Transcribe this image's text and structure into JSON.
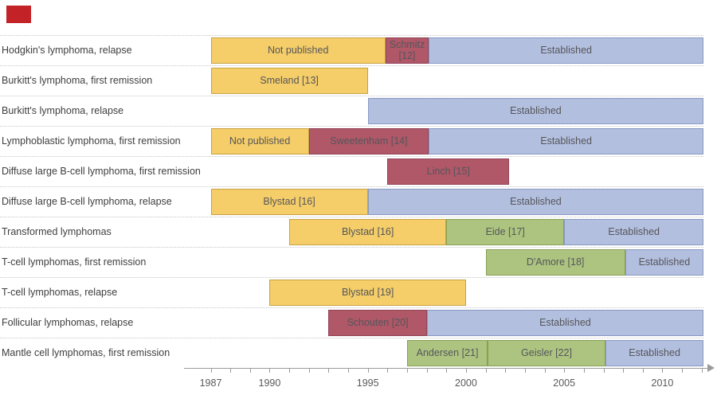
{
  "decorations": {
    "corner_mark_color": "#c32227"
  },
  "chart_data": {
    "type": "bar",
    "subtype": "horizontal-timeline-gantt",
    "title": "",
    "x_axis": {
      "origin_year": 1987,
      "end_year": 2012.1,
      "ticks": [
        1987,
        1990,
        1995,
        2000,
        2005,
        2010
      ],
      "minor_from": 1987,
      "minor_to": 2012,
      "minor_interval": 1
    },
    "colors": {
      "yellow": {
        "fill": "#F5CE69",
        "border": "#C8A145"
      },
      "red": {
        "fill": "#B05768",
        "border": "#934459"
      },
      "blue": {
        "fill": "#B3BFDF",
        "border": "#8999C5"
      },
      "green": {
        "fill": "#ADC480",
        "border": "#87A054"
      }
    },
    "rows": [
      {
        "label": "Hodgkin's lymphoma, relapse",
        "segments": [
          {
            "label": "Not published",
            "color": "yellow",
            "start": 1987,
            "end": 1995.9
          },
          {
            "label": "Schmitz [12]",
            "color": "red",
            "start": 1995.9,
            "end": 1998.1
          },
          {
            "label": "Established",
            "color": "blue",
            "start": 1998.1,
            "end": 2012.1
          }
        ]
      },
      {
        "label": "Burkitt's lymphoma, first remission",
        "segments": [
          {
            "label": "Smeland [13]",
            "color": "yellow",
            "start": 1987,
            "end": 1995
          }
        ]
      },
      {
        "label": "Burkitt's lymphoma, relapse",
        "segments": [
          {
            "label": "Established",
            "color": "blue",
            "start": 1995,
            "end": 2012.1
          }
        ]
      },
      {
        "label": "Lymphoblastic lymphoma, first remission",
        "segments": [
          {
            "label": "Not published",
            "color": "yellow",
            "start": 1987,
            "end": 1992
          },
          {
            "label": "Sweetenham [14]",
            "color": "red",
            "start": 1992,
            "end": 1998.1
          },
          {
            "label": "Established",
            "color": "blue",
            "start": 1998.1,
            "end": 2012.1
          }
        ]
      },
      {
        "label": "Diffuse large B-cell lymphoma, first remission",
        "segments": [
          {
            "label": "Linch [15]",
            "color": "red",
            "start": 1996,
            "end": 2002.2
          }
        ]
      },
      {
        "label": "Diffuse large B-cell lymphoma, relapse",
        "segments": [
          {
            "label": "Blystad [16]",
            "color": "yellow",
            "start": 1987,
            "end": 1995
          },
          {
            "label": "Established",
            "color": "blue",
            "start": 1995,
            "end": 2012.1
          }
        ]
      },
      {
        "label": "Transformed lymphomas",
        "segments": [
          {
            "label": "Blystad [16]",
            "color": "yellow",
            "start": 1991,
            "end": 1999
          },
          {
            "label": "Eide [17]",
            "color": "green",
            "start": 1999,
            "end": 2005
          },
          {
            "label": "Established",
            "color": "blue",
            "start": 2005,
            "end": 2012.1
          }
        ]
      },
      {
        "label": "T-cell lymphomas, first remission",
        "segments": [
          {
            "label": "D'Amore [18]",
            "color": "green",
            "start": 2001,
            "end": 2008.1
          },
          {
            "label": "Established",
            "color": "blue",
            "start": 2008.1,
            "end": 2012.1
          }
        ]
      },
      {
        "label": "T-cell lymphomas, relapse",
        "segments": [
          {
            "label": "Blystad [19]",
            "color": "yellow",
            "start": 1990,
            "end": 2000
          }
        ]
      },
      {
        "label": "Follicular lymphomas, relapse",
        "segments": [
          {
            "label": "Schouten [20]",
            "color": "red",
            "start": 1993,
            "end": 1998
          },
          {
            "label": "Established",
            "color": "blue",
            "start": 1998,
            "end": 2012.1
          }
        ]
      },
      {
        "label": "Mantle cell lymphomas, first remission",
        "segments": [
          {
            "label": "Andersen [21]",
            "color": "green",
            "start": 1997,
            "end": 2001.1
          },
          {
            "label": "Geisler [22]",
            "color": "green",
            "start": 2001.1,
            "end": 2007.1
          },
          {
            "label": "Established",
            "color": "blue",
            "start": 2007.1,
            "end": 2012.1
          }
        ]
      }
    ]
  }
}
